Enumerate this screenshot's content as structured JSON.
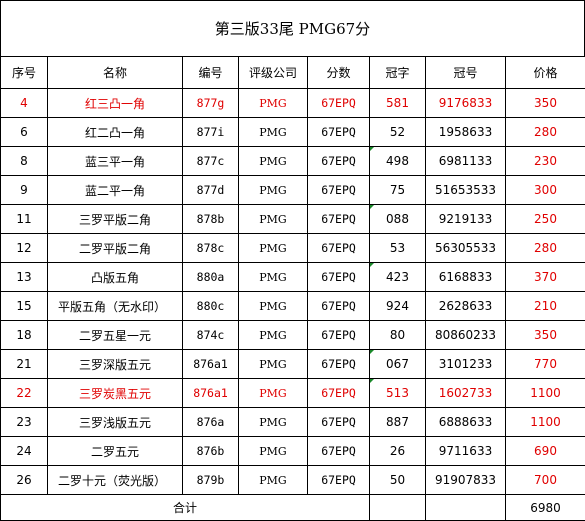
{
  "title": "第三版33尾 PMG67分",
  "columns": [
    "序号",
    "名称",
    "编号",
    "评级公司",
    "分数",
    "冠字",
    "冠号",
    "价格"
  ],
  "rows": [
    {
      "seq": "4",
      "name": "红三凸一角",
      "code": "877g",
      "company": "PMG",
      "score": "67EPQ",
      "prefix": "581",
      "serial": "9176833",
      "price": "350",
      "highlight": true
    },
    {
      "seq": "6",
      "name": "红二凸一角",
      "code": "877i",
      "company": "PMG",
      "score": "67EPQ",
      "prefix": "52",
      "serial": "1958633",
      "price": "280",
      "highlight": false
    },
    {
      "seq": "8",
      "name": "蓝三平一角",
      "code": "877c",
      "company": "PMG",
      "score": "67EPQ",
      "prefix": "498",
      "serial": "6981133",
      "price": "230",
      "highlight": false
    },
    {
      "seq": "9",
      "name": "蓝二平一角",
      "code": "877d",
      "company": "PMG",
      "score": "67EPQ",
      "prefix": "75",
      "serial": "51653533",
      "price": "300",
      "highlight": false
    },
    {
      "seq": "11",
      "name": "三罗平版二角",
      "code": "878b",
      "company": "PMG",
      "score": "67EPQ",
      "prefix": "088",
      "serial": "9219133",
      "price": "250",
      "highlight": false
    },
    {
      "seq": "12",
      "name": "二罗平版二角",
      "code": "878c",
      "company": "PMG",
      "score": "67EPQ",
      "prefix": "53",
      "serial": "56305533",
      "price": "280",
      "highlight": false
    },
    {
      "seq": "13",
      "name": "凸版五角",
      "code": "880a",
      "company": "PMG",
      "score": "67EPQ",
      "prefix": "423",
      "serial": "6168833",
      "price": "370",
      "highlight": false
    },
    {
      "seq": "15",
      "name": "平版五角（无水印）",
      "code": "880c",
      "company": "PMG",
      "score": "67EPQ",
      "prefix": "924",
      "serial": "2628633",
      "price": "210",
      "highlight": false
    },
    {
      "seq": "18",
      "name": "二罗五星一元",
      "code": "874c",
      "company": "PMG",
      "score": "67EPQ",
      "prefix": "80",
      "serial": "80860233",
      "price": "350",
      "highlight": false
    },
    {
      "seq": "21",
      "name": "三罗深版五元",
      "code": "876a1",
      "company": "PMG",
      "score": "67EPQ",
      "prefix": "067",
      "serial": "3101233",
      "price": "770",
      "highlight": false
    },
    {
      "seq": "22",
      "name": "三罗炭黑五元",
      "code": "876a1",
      "company": "PMG",
      "score": "67EPQ",
      "prefix": "513",
      "serial": "1602733",
      "price": "1100",
      "highlight": true
    },
    {
      "seq": "23",
      "name": "三罗浅版五元",
      "code": "876a",
      "company": "PMG",
      "score": "67EPQ",
      "prefix": "887",
      "serial": "6888633",
      "price": "1100",
      "highlight": false
    },
    {
      "seq": "24",
      "name": "二罗五元",
      "code": "876b",
      "company": "PMG",
      "score": "67EPQ",
      "prefix": "26",
      "serial": "9711633",
      "price": "690",
      "highlight": false
    },
    {
      "seq": "26",
      "name": "二罗十元（荧光版）",
      "code": "879b",
      "company": "PMG",
      "score": "67EPQ",
      "prefix": "50",
      "serial": "91907833",
      "price": "700",
      "highlight": false
    }
  ],
  "total": {
    "label": "合计",
    "price": "6980"
  },
  "colors": {
    "highlight_text": "#e00000",
    "price_text": "#e00000",
    "cell_marker": "#1a8a2a",
    "border": "#000000"
  }
}
